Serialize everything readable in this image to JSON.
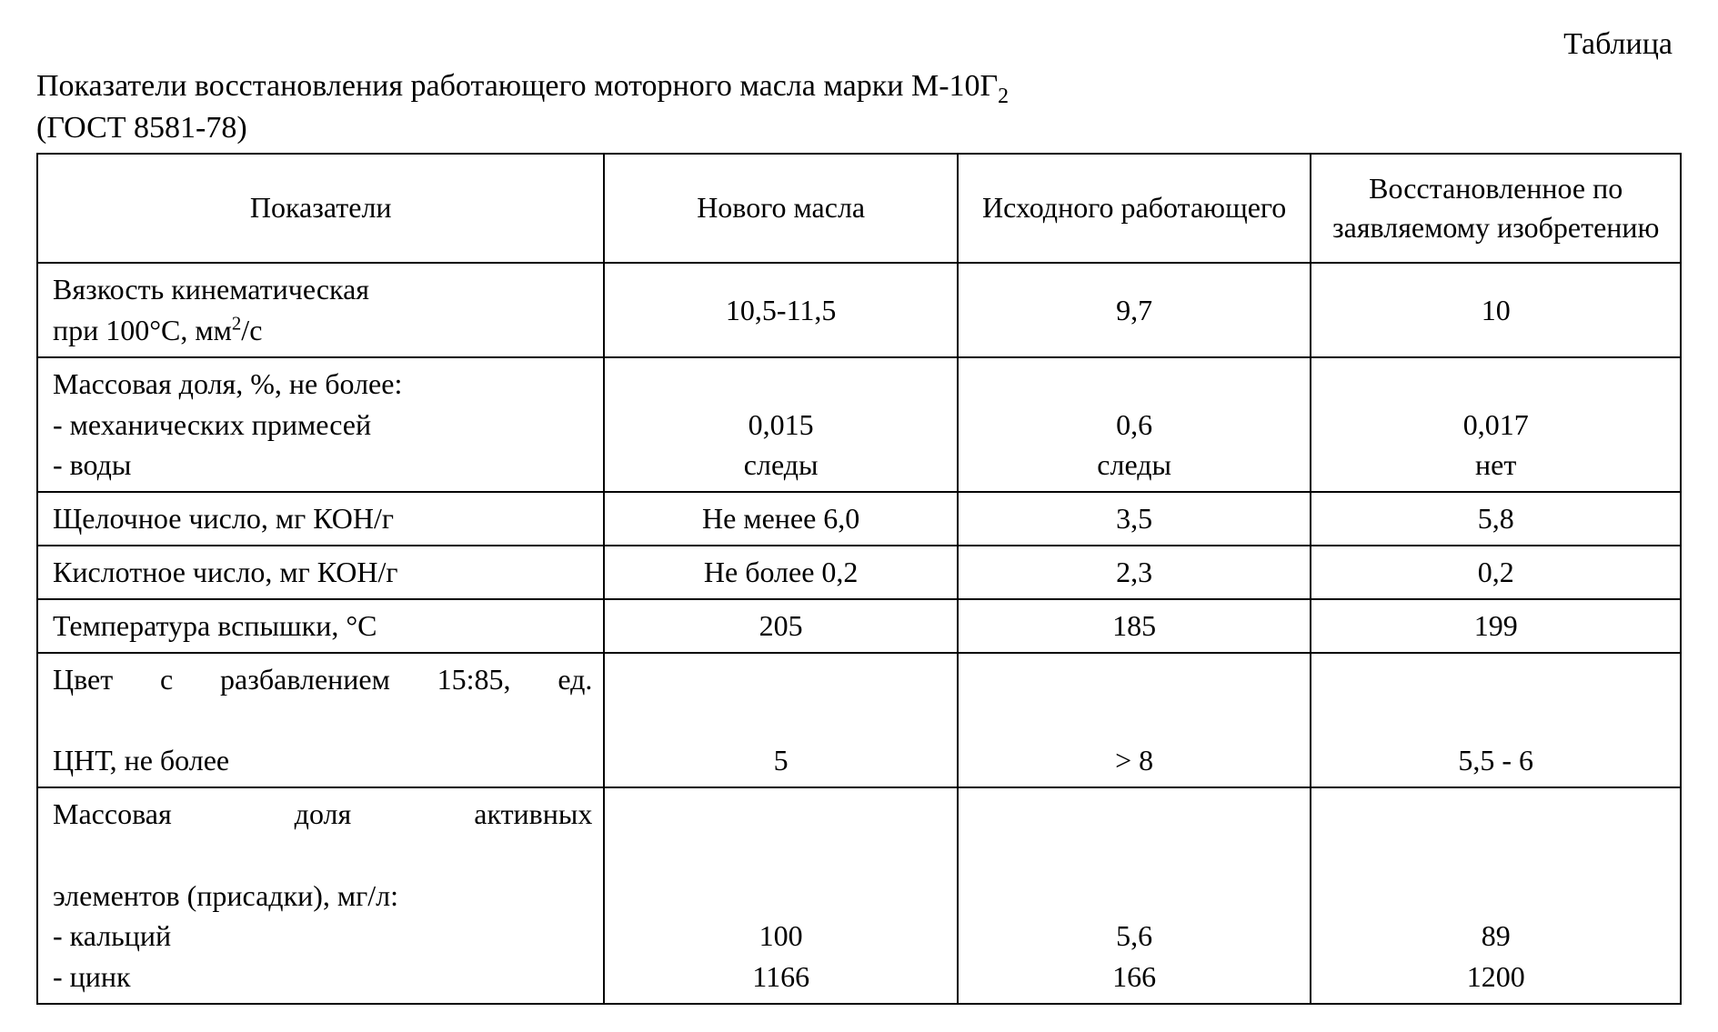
{
  "heading": {
    "top_right": "Таблица",
    "line1": "Показатели восстановления работающего моторного масла марки М-10Г",
    "line1_sub": "2",
    "line2": "(ГОСТ 8581-78)"
  },
  "table": {
    "columns": [
      "Показатели",
      "Нового масла",
      "Исходного работающего",
      "Восстановленное по заявляемому изобретению"
    ],
    "rows": [
      {
        "label_html": "Вязкость кинематическая<br>при 100°С, мм<span class=\"sup\">2</span>/с",
        "v1": "10,5-11,5",
        "v2": "9,7",
        "v3": "10"
      },
      {
        "label_html": "Массовая доля, %, не более:<br>- механических примесей<br>- воды",
        "v1": "0,015<br>следы",
        "v2": "0,6<br>следы",
        "v3": "0,017<br>нет",
        "val_valign": "bottom"
      },
      {
        "label_html": "Щелочное число, мг КОН/г",
        "v1": "Не менее 6,0",
        "v2": "3,5",
        "v3": "5,8"
      },
      {
        "label_html": "Кислотное число, мг КОН/г",
        "v1": "Не более 0,2",
        "v2": "2,3",
        "v3": "0,2"
      },
      {
        "label_html": "Температура вспышки, °С",
        "v1": "205",
        "v2": "185",
        "v3": "199"
      },
      {
        "label_html": "<span class=\"justify-row\" style=\"display:block\">Цвет с разбавлением 15:85, ед.</span>ЦНТ, не более",
        "v1": "5",
        "v2": "> 8",
        "v3": "5,5 - 6",
        "val_valign": "bottom"
      },
      {
        "label_html": "<span class=\"justify-row\" style=\"display:block\">Массовая &nbsp; доля &nbsp; активных</span>элементов (присадки), мг/л:<br>- кальций<br>- цинк",
        "v1": "100<br>1166",
        "v2": "5,6<br>166",
        "v3": "89<br>1200",
        "val_valign": "bottom"
      }
    ],
    "border_color": "#000000",
    "background_color": "#ffffff",
    "font_color": "#000000",
    "font_size_pt": 24
  }
}
